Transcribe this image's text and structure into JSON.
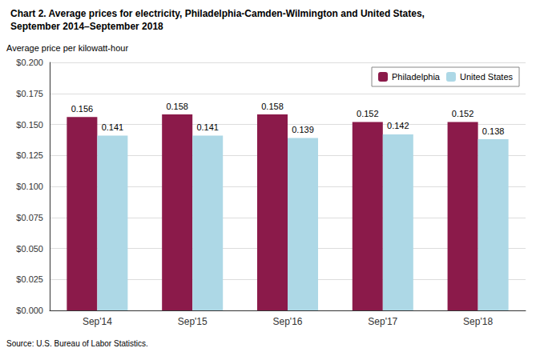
{
  "chart_data": {
    "type": "bar",
    "title": "Chart 2. Average prices for electricity, Philadelphia-Camden-Wilmington and United States,",
    "subtitle": "September 2014–September 2018",
    "ylabel": "Average price per kilowatt-hour",
    "source": "Source: U.S. Bureau of Labor Statistics.",
    "categories": [
      "Sep'14",
      "Sep'15",
      "Sep'16",
      "Sep'17",
      "Sep'18"
    ],
    "series": [
      {
        "name": "Philadelphia",
        "color": "#8B1A4A",
        "values": [
          0.156,
          0.158,
          0.158,
          0.152,
          0.152
        ]
      },
      {
        "name": "United States",
        "color": "#ADD8E6",
        "values": [
          0.141,
          0.141,
          0.139,
          0.142,
          0.138
        ]
      }
    ],
    "ylim": [
      0,
      0.2
    ],
    "yticks": [
      {
        "value": 0,
        "label": "$0.000"
      },
      {
        "value": 0.025,
        "label": "$0.025"
      },
      {
        "value": 0.05,
        "label": "$0.050"
      },
      {
        "value": 0.075,
        "label": "$0.075"
      },
      {
        "value": 0.1,
        "label": "$0.100"
      },
      {
        "value": 0.125,
        "label": "$0.125"
      },
      {
        "value": 0.15,
        "label": "$0.150"
      },
      {
        "value": 0.175,
        "label": "$0.175"
      },
      {
        "value": 0.2,
        "label": "$0.200"
      }
    ],
    "grid": true,
    "legend": "upper right",
    "data_labels": true
  }
}
